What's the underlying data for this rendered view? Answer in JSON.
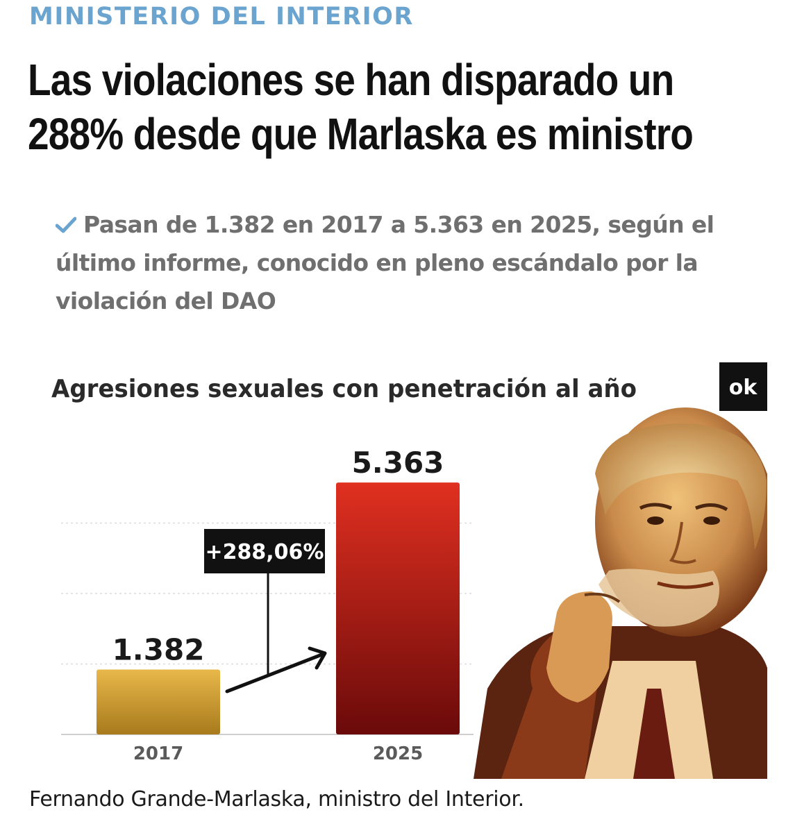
{
  "article": {
    "section": "MINISTERIO DEL INTERIOR",
    "headline_line1": "Las violaciones se han disparado un",
    "headline_line2": "288% desde que Marlaska es ministro",
    "summary": "Pasan de 1.382 en 2017 a 5.363 en 2025, según el último informe, conocido en pleno escándalo por la violación del DAO",
    "summary_icon": "check-icon",
    "caption": "Fernando Grande-Marlaska, ministro del Interior."
  },
  "logo": {
    "text": "ok"
  },
  "colors": {
    "section": "#6aa4cf",
    "bar_2017_top": "#e8b84a",
    "bar_2017_bottom": "#a87a1c",
    "bar_2025_top": "#e03020",
    "bar_2025_bottom": "#6a0a0a",
    "badge": "#111111",
    "photo_tone": "#c98a4a"
  },
  "chart_data": {
    "type": "bar",
    "title": "Agresiones sexuales con penetración al año",
    "categories": [
      "2017",
      "2025"
    ],
    "values": [
      1382,
      5363
    ],
    "value_labels": [
      "1.382",
      "5.363"
    ],
    "annotation": "+288,06%",
    "ylim": [
      0,
      6000
    ],
    "grid": true,
    "xlabel": "",
    "ylabel": ""
  }
}
